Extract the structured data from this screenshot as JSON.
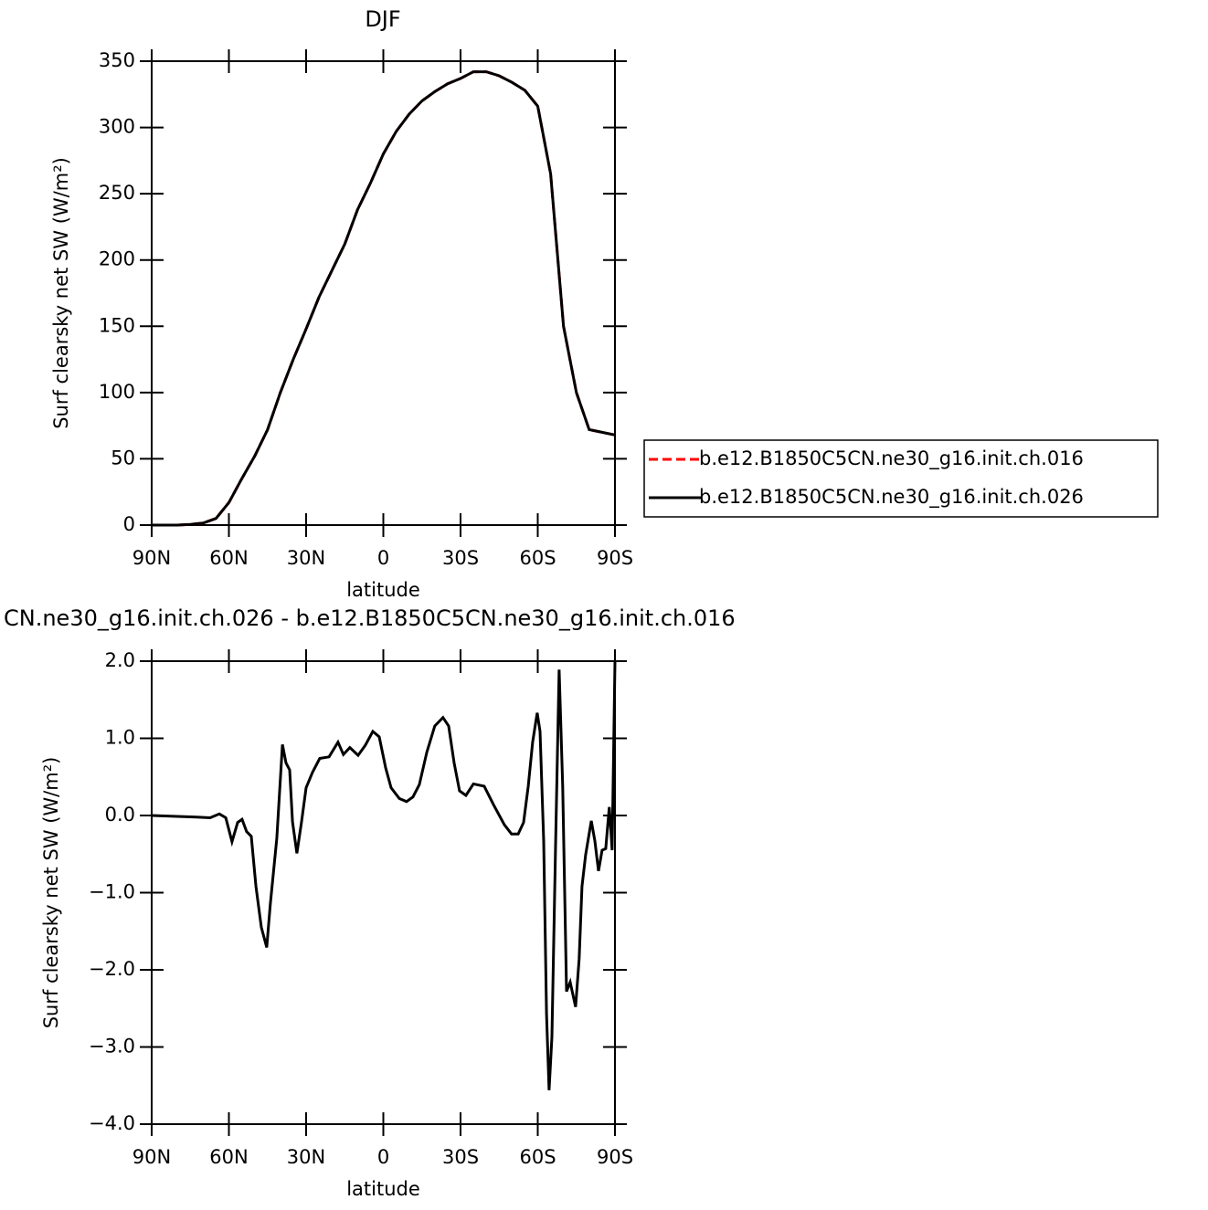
{
  "chart_data": [
    {
      "type": "line",
      "title": "DJF",
      "xlabel": "latitude",
      "ylabel": "Surf clearsky net SW (W/m²)",
      "x": [
        90,
        85,
        80,
        75,
        70,
        65,
        60,
        55,
        50,
        45,
        40,
        35,
        30,
        25,
        20,
        15,
        10,
        5,
        0,
        -5,
        -10,
        -15,
        -20,
        -25,
        -30,
        -35,
        -40,
        -45,
        -50,
        -55,
        -60,
        -65,
        -70,
        -75,
        -80,
        -85,
        -90
      ],
      "series": [
        {
          "name": "b.e12.B1850C5CN.ne30_g16.init.ch.016",
          "color": "#ff0000",
          "dash": true,
          "values": [
            0,
            0,
            0,
            0.5,
            1.5,
            5,
            17,
            35,
            52,
            72,
            100,
            125,
            148,
            172,
            192,
            212,
            238,
            258,
            280,
            297,
            310,
            320,
            327,
            333,
            337,
            342,
            342,
            339,
            334,
            328,
            316,
            265,
            150,
            100,
            72,
            70,
            68
          ]
        },
        {
          "name": "b.e12.B1850C5CN.ne30_g16.init.ch.026",
          "color": "#000000",
          "dash": false,
          "values": [
            0,
            0,
            0,
            0.5,
            1.5,
            5,
            17,
            35,
            52,
            72,
            100,
            125,
            148,
            172,
            192,
            212,
            238,
            258,
            280,
            297,
            310,
            320,
            327,
            333,
            337,
            342,
            342,
            339,
            334,
            328,
            316,
            265,
            150,
            100,
            72,
            70,
            68
          ]
        }
      ],
      "xlim": [
        90,
        -90
      ],
      "xticks": [
        {
          "value": 90,
          "label": "90N"
        },
        {
          "value": 60,
          "label": "60N"
        },
        {
          "value": 30,
          "label": "30N"
        },
        0,
        {
          "value": -30,
          "label": "30S"
        },
        {
          "value": -60,
          "label": "60S"
        },
        {
          "value": -90,
          "label": "90S"
        }
      ],
      "ylim": [
        0,
        350
      ],
      "yticks": [
        0,
        50,
        100,
        150,
        200,
        250,
        300,
        350
      ],
      "legend": "right"
    },
    {
      "type": "line",
      "title": "CN.ne30_g16.init.ch.026 - b.e12.B1850C5CN.ne30_g16.init.ch.016",
      "xlabel": "latitude",
      "ylabel": "Surf clearsky net SW (W/m²)",
      "x": [
        90,
        72.6,
        67.3,
        63.7,
        61.2,
        58.8,
        56.6,
        54.9,
        53.1,
        51.3,
        49.5,
        47.4,
        45.3,
        43.9,
        41.4,
        39.2,
        37.8,
        36.4,
        35.3,
        33.6,
        31.8,
        30.0,
        27.5,
        24.7,
        21.1,
        17.6,
        15.5,
        13.0,
        9.8,
        7.0,
        4.1,
        1.6,
        -0.9,
        -3.0,
        -6.2,
        -9.0,
        -11.5,
        -14.0,
        -16.9,
        -20.0,
        -23.2,
        -25.4,
        -27.5,
        -29.6,
        -32.1,
        -35.0,
        -39.2,
        -42.8,
        -47.0,
        -49.8,
        -52.4,
        -54.5,
        -56.3,
        -58.0,
        -59.8,
        -60.9,
        -62.3,
        -63.4,
        -64.4,
        -65.5,
        -66.9,
        -68.3,
        -69.7,
        -71.2,
        -72.6,
        -74.7,
        -76.1,
        -77.2,
        -78.6,
        -80.8,
        -82.2,
        -83.6,
        -85.0,
        -86.4,
        -87.8,
        -88.9,
        -90
      ],
      "series": [
        {
          "name": "difference",
          "color": "#000000",
          "dash": false,
          "values": [
            0,
            -0.02,
            -0.03,
            0.02,
            -0.03,
            -0.34,
            -0.09,
            -0.05,
            -0.21,
            -0.27,
            -0.92,
            -1.45,
            -1.71,
            -1.15,
            -0.3,
            0.92,
            0.68,
            0.59,
            -0.08,
            -0.49,
            -0.09,
            0.36,
            0.56,
            0.74,
            0.76,
            0.95,
            0.79,
            0.88,
            0.78,
            0.91,
            1.09,
            1.02,
            0.62,
            0.36,
            0.22,
            0.18,
            0.24,
            0.4,
            0.82,
            1.16,
            1.27,
            1.16,
            0.68,
            0.32,
            0.26,
            0.41,
            0.38,
            0.14,
            -0.12,
            -0.24,
            -0.24,
            -0.09,
            0.38,
            0.95,
            1.33,
            1.09,
            -0.33,
            -2.57,
            -3.56,
            -2.87,
            -0.45,
            1.89,
            0.38,
            -2.28,
            -2.16,
            -2.48,
            -1.86,
            -0.92,
            -0.51,
            -0.07,
            -0.33,
            -0.72,
            -0.45,
            -0.43,
            0.11,
            -0.45,
            1.99
          ]
        }
      ],
      "xlim": [
        90,
        -90
      ],
      "xticks": [
        {
          "value": 90,
          "label": "90N"
        },
        {
          "value": 60,
          "label": "60N"
        },
        {
          "value": 30,
          "label": "30N"
        },
        0,
        {
          "value": -30,
          "label": "30S"
        },
        {
          "value": -60,
          "label": "60S"
        },
        {
          "value": -90,
          "label": "90S"
        }
      ],
      "ylim": [
        -4,
        2
      ],
      "yticks": [
        {
          "value": 2,
          "label": "2.0"
        },
        {
          "value": 1,
          "label": "1.0"
        },
        {
          "value": 0,
          "label": "0.0"
        },
        {
          "value": -1,
          "label": "−1.0"
        },
        {
          "value": -2,
          "label": "−2.0"
        },
        {
          "value": -3,
          "label": "−3.0"
        },
        {
          "value": -4,
          "label": "−4.0"
        }
      ]
    }
  ]
}
